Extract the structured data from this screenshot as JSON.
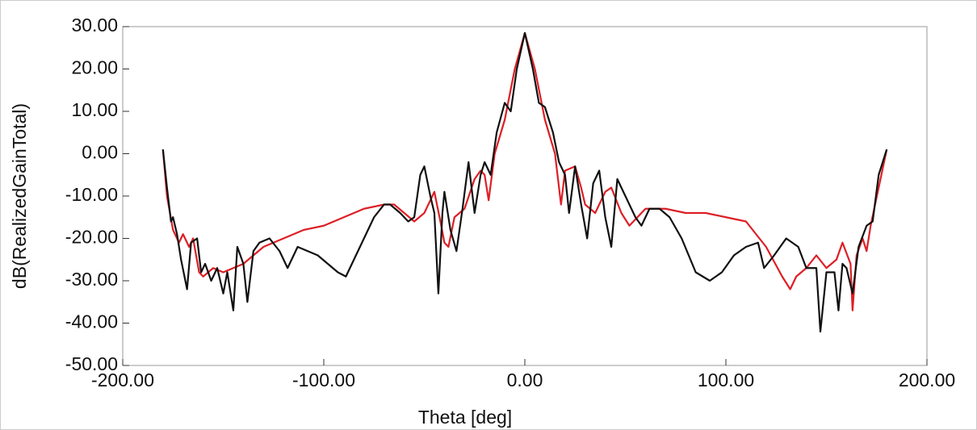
{
  "chart_data": {
    "type": "line",
    "xlabel": "Theta [deg]",
    "ylabel": "dB(RealizedGainTotal)",
    "xlim": [
      -200,
      200
    ],
    "ylim": [
      -50,
      30
    ],
    "xticks": [
      {
        "value": -200,
        "label": "-200.00"
      },
      {
        "value": -100,
        "label": "-100.00"
      },
      {
        "value": 0,
        "label": "0.00"
      },
      {
        "value": 100,
        "label": "100.00"
      },
      {
        "value": 200,
        "label": "200.00"
      }
    ],
    "yticks": [
      {
        "value": -50,
        "label": "-50.00"
      },
      {
        "value": -40,
        "label": "-40.00"
      },
      {
        "value": -30,
        "label": "-30.00"
      },
      {
        "value": -20,
        "label": "-20.00"
      },
      {
        "value": -10,
        "label": "-10.00"
      },
      {
        "value": 0,
        "label": "0.00"
      },
      {
        "value": 10,
        "label": "10.00"
      },
      {
        "value": 20,
        "label": "20.00"
      },
      {
        "value": 30,
        "label": "30.00"
      }
    ],
    "grid": false,
    "series": [
      {
        "color": "#dd1f26",
        "x": [
          -180,
          -178,
          -175,
          -172,
          -170,
          -167,
          -165,
          -162,
          -160,
          -155,
          -150,
          -145,
          -140,
          -135,
          -130,
          -120,
          -110,
          -100,
          -90,
          -80,
          -70,
          -65,
          -60,
          -55,
          -50,
          -45,
          -42,
          -40,
          -38,
          -35,
          -30,
          -25,
          -22,
          -20,
          -18,
          -15,
          -10,
          -5,
          0,
          5,
          10,
          15,
          18,
          20,
          25,
          28,
          30,
          35,
          40,
          43,
          48,
          52,
          60,
          70,
          80,
          90,
          100,
          110,
          120,
          128,
          132,
          135,
          140,
          145,
          150,
          155,
          158,
          162,
          163,
          165,
          168,
          170,
          172,
          176,
          180
        ],
        "values": [
          1,
          -10,
          -18,
          -21,
          -19,
          -22,
          -20,
          -28,
          -29,
          -27,
          -28,
          -27,
          -26,
          -24,
          -22,
          -20,
          -18,
          -17,
          -15,
          -13,
          -12,
          -12,
          -14,
          -16,
          -14,
          -9,
          -16,
          -21,
          -22,
          -15,
          -13,
          -6,
          -4,
          -5,
          -11,
          0,
          8,
          20,
          28.5,
          20,
          8,
          0,
          -12,
          -4,
          -3,
          -8,
          -12,
          -14,
          -9,
          -8,
          -14,
          -17,
          -13,
          -13,
          -14,
          -14,
          -15,
          -16,
          -22,
          -29,
          -32,
          -29,
          -27,
          -24,
          -27,
          -25,
          -21,
          -26,
          -37,
          -24,
          -20,
          -23,
          -17,
          -8,
          1
        ]
      },
      {
        "color": "#111111",
        "x": [
          -180,
          -178,
          -176,
          -175,
          -173,
          -171,
          -168,
          -166,
          -163,
          -161,
          -159,
          -156,
          -153,
          -150,
          -148,
          -145,
          -143,
          -140,
          -138,
          -135,
          -132,
          -127,
          -122,
          -118,
          -113,
          -108,
          -103,
          -98,
          -93,
          -89,
          -85,
          -80,
          -75,
          -70,
          -67,
          -62,
          -58,
          -55,
          -52,
          -50,
          -47,
          -45,
          -43,
          -41,
          -40,
          -37,
          -34,
          -31,
          -28,
          -25,
          -22,
          -20,
          -17,
          -14,
          -10,
          -7,
          -4,
          0,
          4,
          7,
          10,
          14,
          17,
          20,
          22,
          25,
          28,
          31,
          34,
          37,
          40,
          43,
          46,
          50,
          55,
          58,
          62,
          67,
          72,
          78,
          85,
          92,
          98,
          104,
          110,
          116,
          119,
          124,
          130,
          136,
          140,
          145,
          147,
          150,
          154,
          156,
          158,
          160,
          163,
          166,
          170,
          173,
          176,
          178,
          180
        ],
        "values": [
          1,
          -8,
          -16,
          -15,
          -19,
          -25,
          -32,
          -21,
          -20,
          -28,
          -26,
          -30,
          -27,
          -33,
          -28,
          -37,
          -22,
          -26,
          -35,
          -23,
          -21,
          -20,
          -23,
          -27,
          -22,
          -23,
          -24,
          -26,
          -28,
          -29,
          -25,
          -20,
          -15,
          -12,
          -12,
          -14,
          -16,
          -15,
          -5,
          -3,
          -10,
          -14,
          -33,
          -14,
          -9,
          -18,
          -23,
          -13,
          -2,
          -14,
          -5,
          -2,
          -5,
          5,
          12,
          10,
          20,
          28.5,
          20,
          12,
          11,
          5,
          -2,
          -5,
          -14,
          -3,
          -12,
          -20,
          -7,
          -4,
          -15,
          -22,
          -6,
          -10,
          -15,
          -17,
          -13,
          -13,
          -15,
          -20,
          -28,
          -30,
          -28,
          -24,
          -22,
          -21,
          -27,
          -24,
          -20,
          -22,
          -27,
          -27,
          -42,
          -28,
          -28,
          -37,
          -26,
          -27,
          -33,
          -22,
          -17,
          -16,
          -5,
          -2,
          1
        ]
      }
    ]
  }
}
